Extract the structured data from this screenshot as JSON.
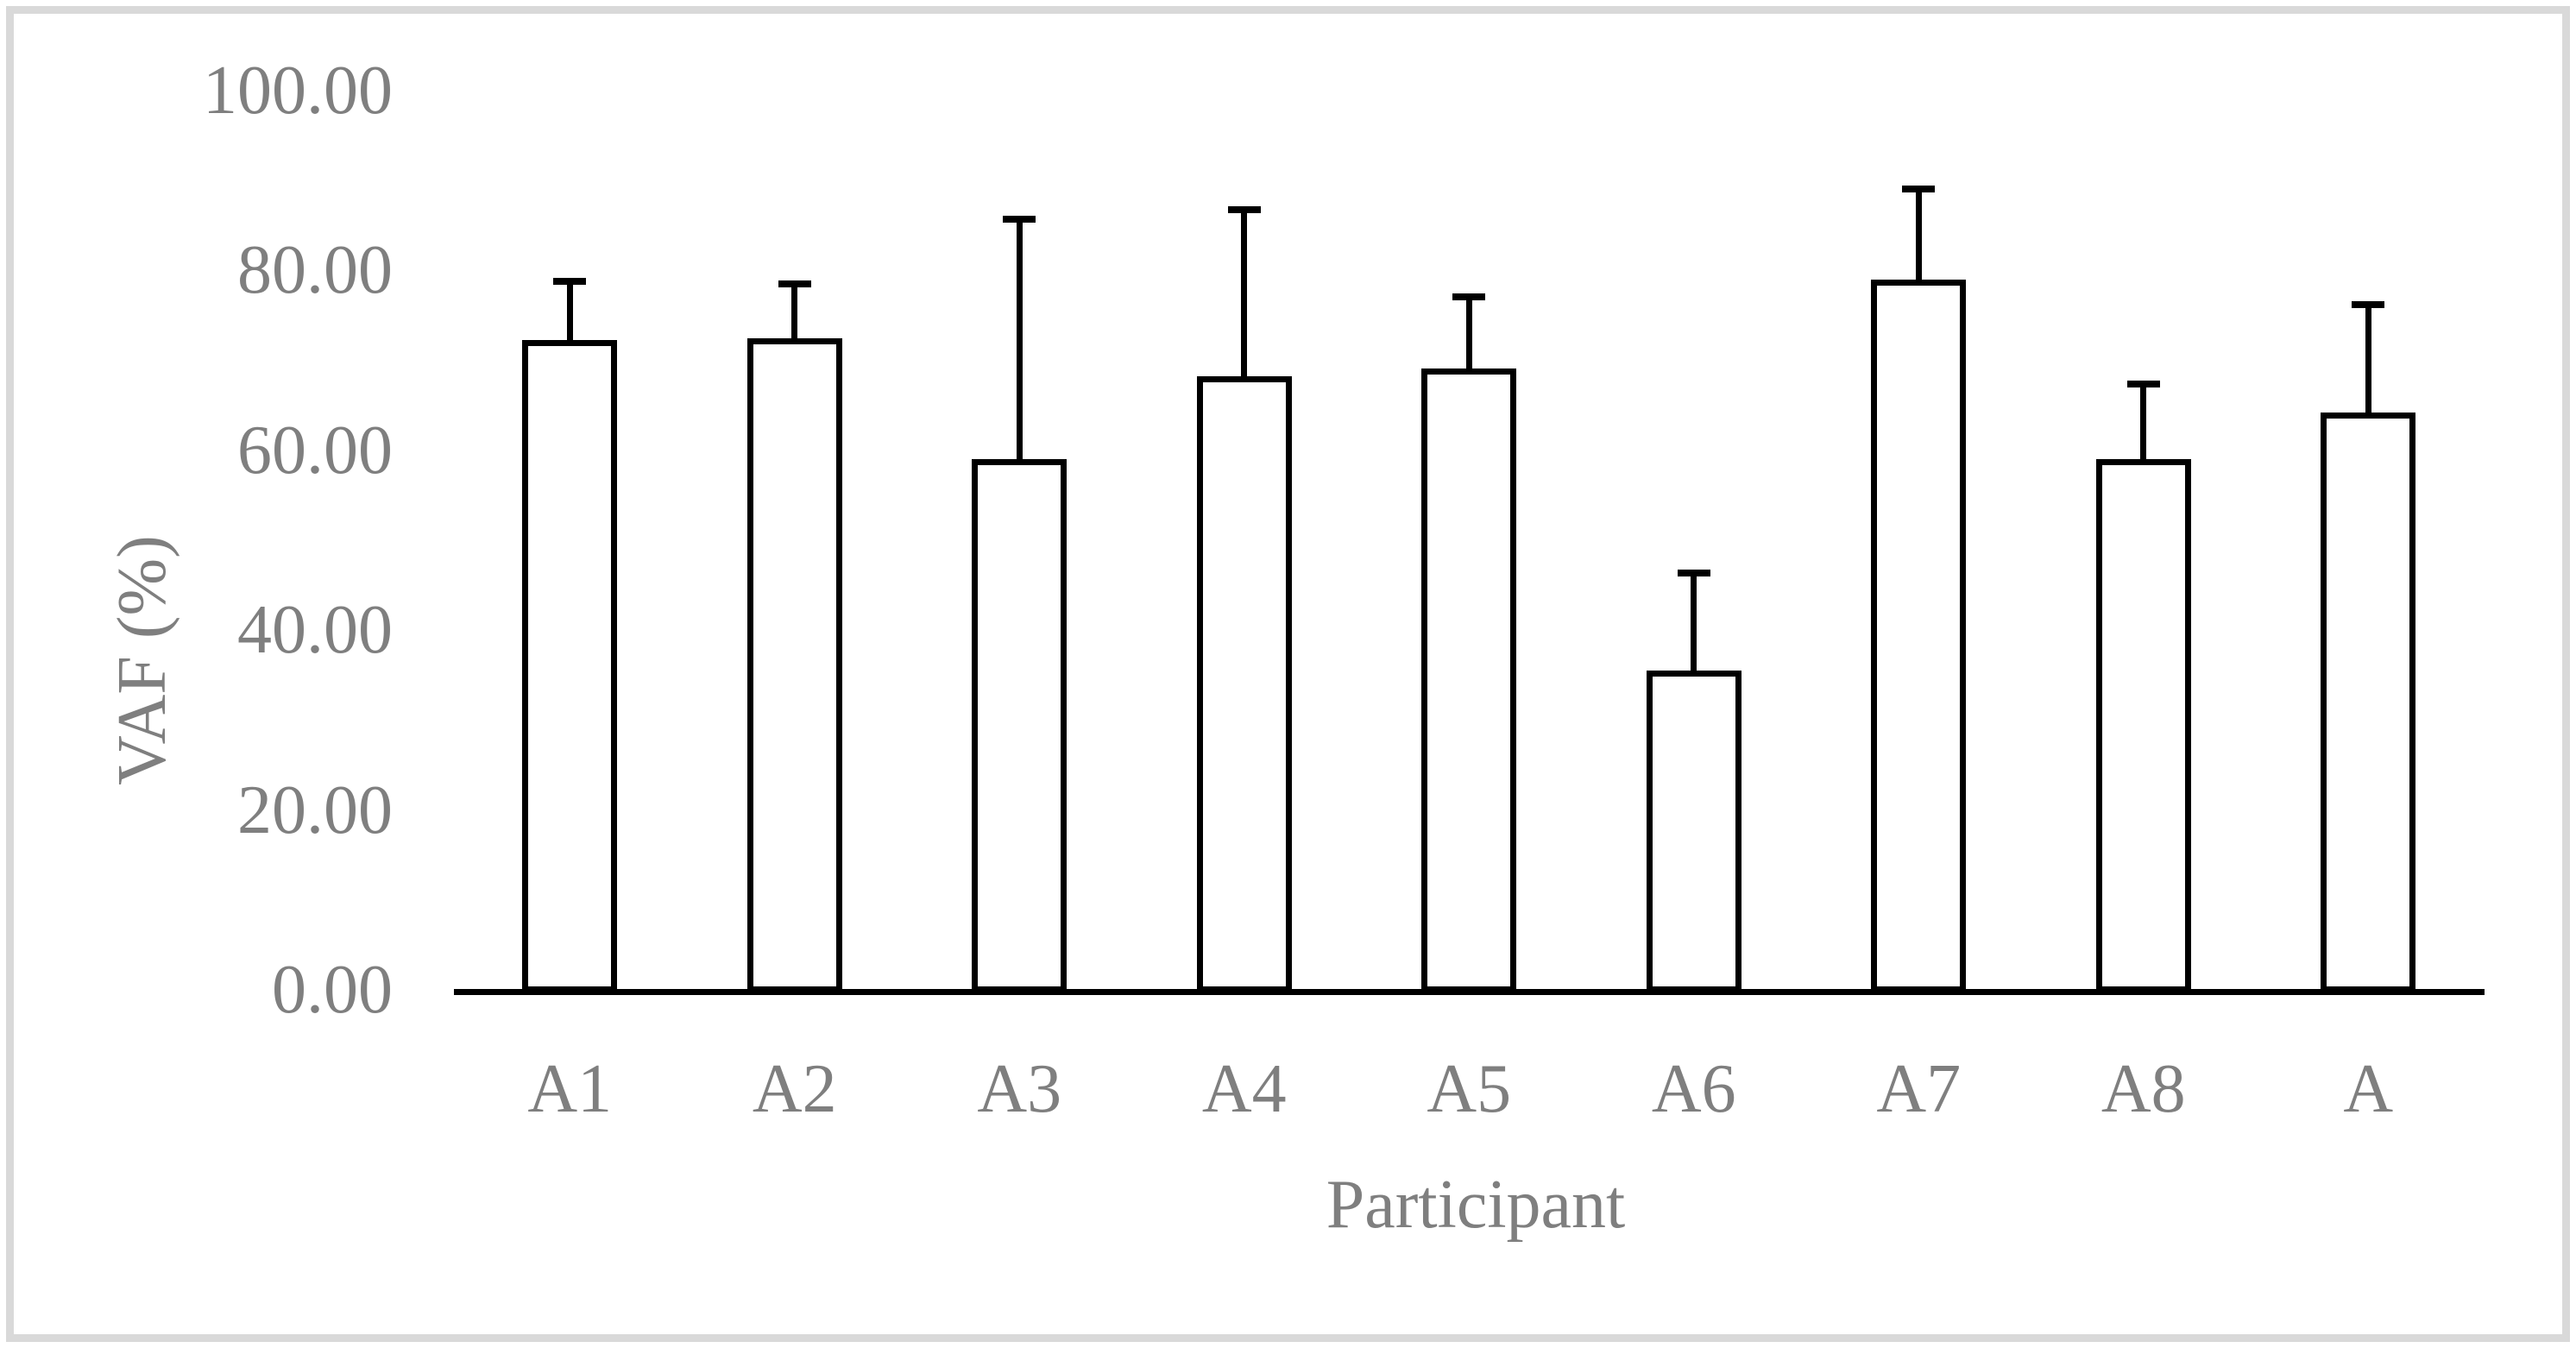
{
  "chart_data": {
    "type": "bar",
    "title": "",
    "categories": [
      "A1",
      "A2",
      "A3",
      "A4",
      "A5",
      "A6",
      "A7",
      "A8",
      "A"
    ],
    "values": [
      72.6,
      72.7,
      59.3,
      68.5,
      69.4,
      35.8,
      79.3,
      59.3,
      64.5
    ],
    "error_plus": [
      6.6,
      6.2,
      26.8,
      18.6,
      8.0,
      10.9,
      10.1,
      8.5,
      12.1
    ],
    "xlabel": "Participant",
    "ylabel": "VAF (%)",
    "ylim": [
      0,
      100
    ],
    "yticks": [
      0,
      20,
      40,
      60,
      80,
      100
    ],
    "ytick_labels": [
      "0.00",
      "20.00",
      "40.00",
      "60.00",
      "80.00",
      "100.00"
    ],
    "grid": false,
    "legend": null,
    "colors": {
      "bar_fill": "#ffffff",
      "bar_stroke": "#000000",
      "axis_line": "#000000",
      "label_color": "#7f7f7f",
      "frame_border": "#d9d9d9",
      "background": "#ffffff"
    }
  }
}
